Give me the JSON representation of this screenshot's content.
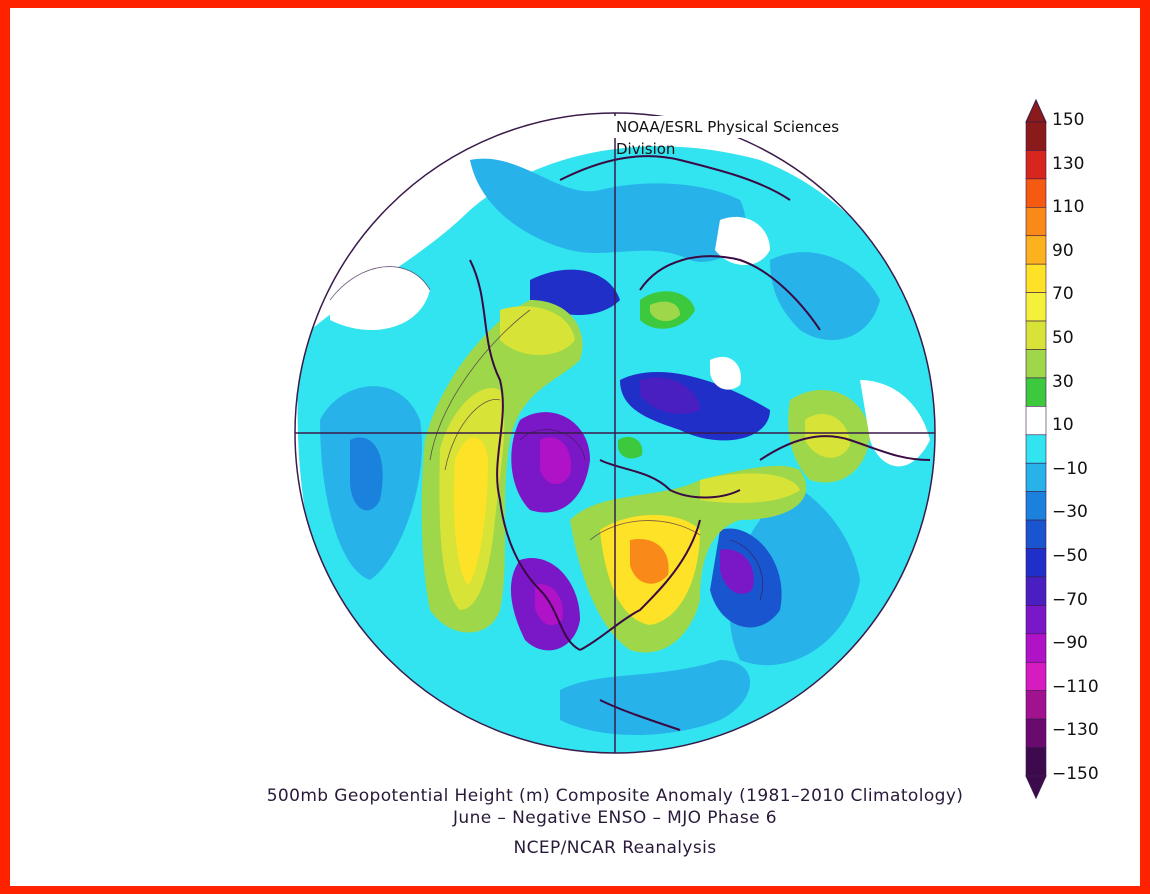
{
  "credit": "NOAA/ESRL Physical Sciences Division",
  "caption": {
    "line1": "500mb Geopotential Height (m) Composite Anomaly (1981–2010 Climatology)",
    "line2": "June – Negative ENSO – MJO Phase 6",
    "line3": "NCEP/NCAR Reanalysis"
  },
  "colorbar": {
    "ticks": [
      "150",
      "130",
      "110",
      "90",
      "70",
      "50",
      "30",
      "10",
      "−10",
      "−30",
      "−50",
      "−70",
      "−90",
      "−110",
      "−130",
      "−150"
    ],
    "colors": [
      "#8b1a1a",
      "#d7261e",
      "#f45a12",
      "#f98a1a",
      "#fbb21e",
      "#fde227",
      "#f5f03a",
      "#d7e437",
      "#9ed84a",
      "#3dc93d",
      "#ffffff",
      "#32e4f0",
      "#27b2ea",
      "#1a82dc",
      "#1a55d0",
      "#1f2fc8",
      "#4a1fc2",
      "#7a18c8",
      "#b012c8",
      "#d61cc0",
      "#a0128e",
      "#6a0a6e",
      "#3e0a4e"
    ]
  },
  "map": {
    "projection": "polar stereographic (north)",
    "variable": "500mb geopotential height anomaly",
    "units": "m"
  }
}
